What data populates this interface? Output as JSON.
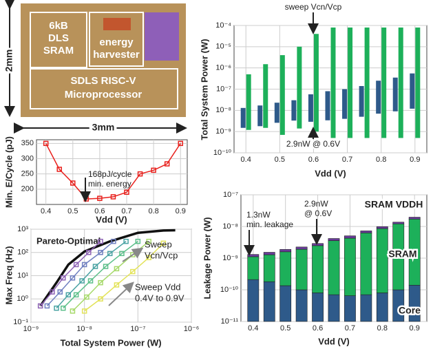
{
  "die_photo": {
    "sram": [
      "6kB",
      "DLS",
      "SRAM"
    ],
    "harvester": [
      "energy",
      "harvester"
    ],
    "core": [
      "SDLS RISC-V",
      "Microprocessor"
    ],
    "width": "3mm",
    "height": "2mm"
  },
  "chart_data": [
    {
      "type": "line",
      "x": [
        0.4,
        0.45,
        0.5,
        0.55,
        0.6,
        0.65,
        0.7,
        0.75,
        0.8,
        0.85,
        0.9
      ],
      "values": [
        350,
        265,
        220,
        168,
        170,
        175,
        190,
        250,
        262,
        283,
        350
      ],
      "color": "#e8201c",
      "marker": "square",
      "xlim": [
        0.365,
        0.925
      ],
      "xticks": [
        0.4,
        0.5,
        0.6,
        0.7,
        0.8,
        0.9
      ],
      "ylim": [
        150,
        362
      ],
      "yticks": [
        200,
        250,
        300,
        350
      ],
      "xlabel": "Vdd (V)",
      "ylabel": "Min. E/Cycle (pJ)",
      "grid": true,
      "annotations": [
        [
          "168pJ/cycle",
          "min. energy"
        ]
      ]
    },
    {
      "type": "line",
      "log_x": true,
      "log_y": true,
      "series": [
        {
          "name": "Pareto-Optimal",
          "color": "#111111",
          "x": [
            1.5e-09,
            3e-09,
            5e-09,
            1e-08,
            3e-08,
            1e-07,
            3e-07,
            5e-07
          ],
          "values": [
            0.5,
            5,
            30,
            110,
            300,
            700,
            880,
            900
          ]
        },
        {
          "color": "#8e63b5",
          "marker": "square",
          "x": [
            1.5e-09,
            2.5e-09,
            4e-09,
            7e-09,
            1.2e-08,
            2e-08
          ],
          "values": [
            0.5,
            2,
            8,
            30,
            100,
            300
          ]
        },
        {
          "color": "#6f7fc0",
          "marker": "square",
          "x": [
            2e-09,
            3.5e-09,
            6e-09,
            1e-08,
            2e-08,
            3.5e-08
          ],
          "values": [
            0.5,
            2,
            8,
            30,
            100,
            300
          ]
        },
        {
          "color": "#4aa3a3",
          "marker": "square",
          "x": [
            3e-09,
            5e-09,
            9e-09,
            1.6e-08,
            3e-08,
            6e-08
          ],
          "values": [
            0.4,
            1.5,
            6,
            25,
            90,
            300
          ]
        },
        {
          "color": "#5cbf8a",
          "marker": "square",
          "x": [
            4e-09,
            7e-09,
            1.3e-08,
            2.5e-08,
            5e-08,
            1e-07
          ],
          "values": [
            0.4,
            1.5,
            6,
            25,
            90,
            300
          ]
        },
        {
          "color": "#a6d96a",
          "marker": "square",
          "x": [
            6e-09,
            1.1e-08,
            2e-08,
            4e-08,
            8e-08,
            1.6e-07
          ],
          "values": [
            0.3,
            1.2,
            5,
            20,
            80,
            300
          ]
        },
        {
          "color": "#e3e35a",
          "marker": "square",
          "x": [
            1e-08,
            2e-08,
            4e-08,
            8e-08,
            1.6e-07,
            3e-07
          ],
          "values": [
            0.3,
            1,
            4,
            15,
            60,
            250
          ]
        }
      ],
      "xlim": [
        1e-09,
        1e-06
      ],
      "xticks": [
        {
          "value": 1e-09,
          "label": "10⁻⁹"
        },
        {
          "value": 1e-08,
          "label": "10⁻⁸"
        },
        {
          "value": 1e-07,
          "label": "10⁻⁷"
        },
        {
          "value": 1e-06,
          "label": "10⁻⁶"
        }
      ],
      "ylim": [
        0.1,
        1000
      ],
      "yticks": [
        {
          "value": 0.1,
          "label": "10⁻¹"
        },
        {
          "value": 1,
          "label": "10⁰"
        },
        {
          "value": 10,
          "label": "10¹"
        },
        {
          "value": 100,
          "label": "10²"
        },
        {
          "value": 1000,
          "label": "10³"
        }
      ],
      "xlabel": "Total System Power (W)",
      "ylabel": "Max Freq (Hz)",
      "grid": true,
      "annotations": [
        [
          "Sweep",
          "Vcn/Vcp"
        ],
        [
          "Sweep Vdd",
          "0.4V to 0.9V"
        ]
      ]
    },
    {
      "type": "range",
      "log_y": true,
      "x": [
        0.4,
        0.45,
        0.5,
        0.55,
        0.6,
        0.65,
        0.7,
        0.75,
        0.8,
        0.85,
        0.9
      ],
      "series": [
        {
          "color": "#2e5a8a",
          "low": [
            1.5e-09,
            1.8e-09,
            2.6e-09,
            3.3e-09,
            2.9e-09,
            3.4e-09,
            4e-09,
            5e-09,
            7e-09,
            9e-09,
            1.2e-08
          ],
          "high": [
            1.3e-08,
            1.7e-08,
            2.3e-08,
            3e-08,
            5.7e-08,
            8e-08,
            1e-07,
            1.4e-07,
            2.5e-07,
            3.5e-07,
            5.5e-07
          ]
        },
        {
          "color": "#1db05a",
          "low": [
            1.2e-09,
            1.5e-09,
            7e-10,
            1.4e-09,
            1e-09,
            5e-10,
            5e-10,
            5e-10,
            5e-10,
            5e-10,
            5e-10
          ],
          "high": [
            5e-07,
            1.5e-06,
            4e-06,
            1e-05,
            4e-05,
            8e-05,
            8e-05,
            8e-05,
            8e-05,
            8e-05,
            8e-05
          ]
        }
      ],
      "xlim": [
        0.365,
        0.935
      ],
      "xticks": [
        0.4,
        0.5,
        0.6,
        0.7,
        0.8,
        0.9
      ],
      "ylim": [
        1e-10,
        0.0001
      ],
      "yticks": [
        {
          "value": 1e-10,
          "label": "10⁻¹⁰"
        },
        {
          "value": 1e-09,
          "label": "10⁻⁹"
        },
        {
          "value": 1e-08,
          "label": "10⁻⁸"
        },
        {
          "value": 1e-07,
          "label": "10⁻⁷"
        },
        {
          "value": 1e-06,
          "label": "10⁻⁶"
        },
        {
          "value": 1e-05,
          "label": "10⁻⁵"
        },
        {
          "value": 0.0001,
          "label": "10⁻⁴"
        }
      ],
      "xlabel": "Vdd (V)",
      "ylabel": "Total System Power (W)",
      "grid": true,
      "annotations": [
        [
          "sweep Vcn/Vcp"
        ],
        [
          "2.9nW @ 0.6V"
        ]
      ]
    },
    {
      "type": "stacked_bar",
      "log_y": true,
      "x": [
        0.4,
        0.45,
        0.5,
        0.55,
        0.6,
        0.65,
        0.7,
        0.75,
        0.8,
        0.85,
        0.9
      ],
      "series": [
        {
          "name": "Core",
          "color": "#2e5a8a",
          "values": [
            2.1e-10,
            1.8e-10,
            1.35e-10,
            1e-10,
            8e-11,
            7e-11,
            6.5e-11,
            7e-11,
            8e-11,
            1e-10,
            1.4e-10
          ]
        },
        {
          "name": "SRAM",
          "color": "#1db05a",
          "values": [
            9e-10,
            1.1e-09,
            1.45e-09,
            1.8e-09,
            2.4e-09,
            3.5e-09,
            4.2e-09,
            6.2e-09,
            8.5e-09,
            1.2e-08,
            1.7e-08
          ]
        },
        {
          "name": "SRAM VDDH",
          "color": "#6a3d9a",
          "values": [
            2e-10,
            2.5e-10,
            3e-10,
            3.5e-10,
            4.2e-10,
            6e-10,
            8e-10,
            1e-09,
            1.3e-09,
            1.6e-09,
            2.5e-09
          ]
        }
      ],
      "xlim": [
        0.362,
        0.938
      ],
      "xticks": [
        0.4,
        0.5,
        0.6,
        0.7,
        0.8,
        0.9
      ],
      "ylim": [
        1e-11,
        1e-07
      ],
      "yticks": [
        {
          "value": 1e-11,
          "label": "10⁻¹¹"
        },
        {
          "value": 1e-10,
          "label": "10⁻¹⁰"
        },
        {
          "value": 1e-09,
          "label": "10⁻⁹"
        },
        {
          "value": 1e-08,
          "label": "10⁻⁸"
        },
        {
          "value": 1e-07,
          "label": "10⁻⁷"
        }
      ],
      "xlabel": "Vdd (V)",
      "ylabel": "Leakage Power (W)",
      "grid": true,
      "annotations": [
        [
          "1.3nW",
          "min. leakage"
        ],
        [
          "2.9nW",
          "@ 0.6V"
        ]
      ]
    }
  ]
}
